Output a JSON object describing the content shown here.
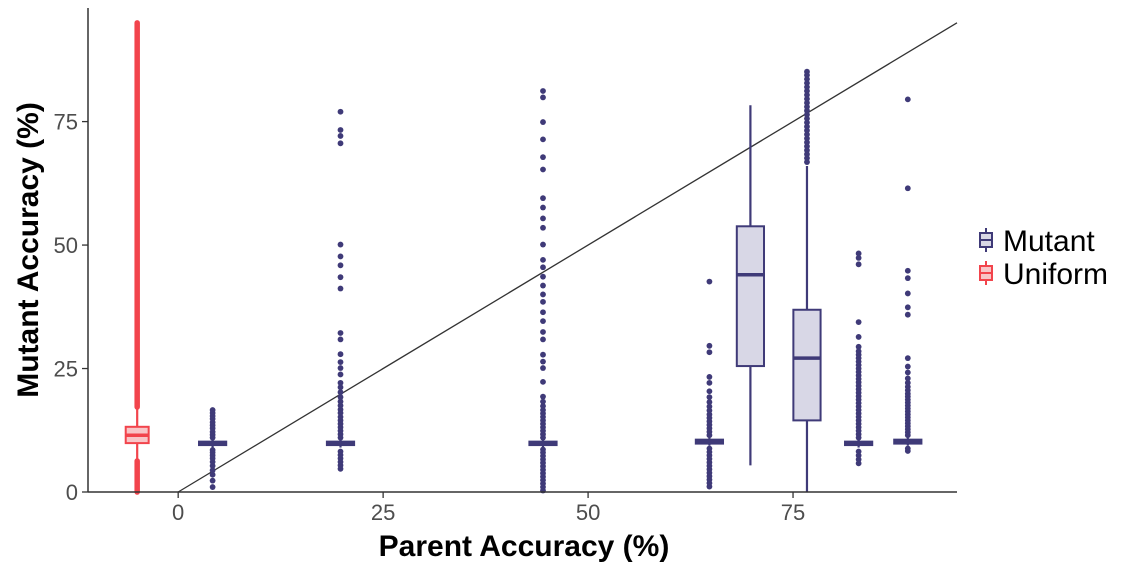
{
  "chart_data": {
    "type": "boxplot",
    "title": "",
    "xlabel": "Parent Accuracy (%)",
    "ylabel": "Mutant Accuracy (%)",
    "xlim": [
      -11,
      95
    ],
    "ylim": [
      0,
      98
    ],
    "x_ticks": [
      0,
      25,
      50,
      75
    ],
    "x_tick_labels": [
      "0",
      "25",
      "50",
      "75"
    ],
    "y_ticks": [
      0,
      25,
      50,
      75
    ],
    "y_tick_labels": [
      "0",
      "25",
      "50",
      "75"
    ],
    "grid": false,
    "legend_position": "right",
    "reference_line": {
      "type": "identity",
      "x": [
        0,
        95
      ],
      "y": [
        0,
        95
      ],
      "color": "#333333"
    },
    "series": [
      {
        "name": "Mutant",
        "color": "#3f3a78",
        "fill": "#d8d7e6",
        "boxes": [
          {
            "x": 4.2,
            "q1": 9.5,
            "median": 9.8,
            "q3": 10.2,
            "whisker_low": 9.0,
            "whisker_high": 10.6,
            "outliers": [
              1.0,
              2.3,
              3.5,
              4.4,
              5.3,
              6.1,
              6.8,
              7.4,
              8.0,
              8.5,
              11.0,
              11.6,
              12.2,
              12.9,
              13.5,
              14.1,
              14.8,
              15.4,
              16.0,
              16.6
            ]
          },
          {
            "x": 19.8,
            "q1": 9.5,
            "median": 9.8,
            "q3": 10.2,
            "whisker_low": 9.0,
            "whisker_high": 10.6,
            "outliers": [
              4.7,
              5.4,
              6.1,
              6.8,
              7.5,
              8.2,
              11.0,
              11.7,
              12.4,
              13.1,
              13.8,
              14.5,
              15.2,
              16.0,
              16.7,
              17.5,
              18.3,
              19.2,
              20.2,
              21.2,
              22.1,
              23.8,
              25.1,
              26.3,
              27.9,
              30.9,
              32.2,
              41.2,
              43.5,
              45.9,
              47.7,
              50.1,
              70.6,
              72.1,
              73.3,
              77.0
            ]
          },
          {
            "x": 44.5,
            "q1": 9.5,
            "median": 9.8,
            "q3": 10.2,
            "whisker_low": 9.0,
            "whisker_high": 10.6,
            "outliers": [
              0.3,
              1.0,
              1.7,
              2.4,
              3.1,
              3.8,
              4.5,
              5.2,
              5.9,
              6.6,
              7.3,
              8.0,
              8.6,
              11.0,
              11.7,
              12.4,
              13.1,
              13.8,
              14.5,
              15.2,
              15.9,
              16.6,
              17.4,
              18.3,
              19.3,
              22.3,
              25.1,
              26.4,
              27.8,
              30.9,
              32.4,
              34.6,
              36.4,
              38.5,
              40.0,
              41.8,
              43.6,
              45.5,
              47.0,
              50.1,
              53.5,
              55.4,
              57.6,
              59.5,
              65.3,
              67.8,
              71.4,
              74.9,
              79.9,
              81.2
            ]
          },
          {
            "x": 64.8,
            "q1": 9.8,
            "median": 10.2,
            "q3": 10.6,
            "whisker_low": 9.4,
            "whisker_high": 11.0,
            "outliers": [
              1.1,
              1.8,
              2.5,
              3.2,
              3.9,
              4.6,
              5.3,
              6.0,
              6.7,
              7.4,
              8.1,
              8.8,
              11.5,
              12.2,
              12.9,
              13.6,
              14.3,
              15.0,
              15.7,
              16.5,
              17.3,
              18.2,
              19.2,
              20.4,
              22.1,
              23.3,
              28.3,
              29.6,
              42.6
            ]
          },
          {
            "x": 69.8,
            "q1": 25.5,
            "median": 44.0,
            "q3": 53.8,
            "whisker_low": 5.4,
            "whisker_high": 78.3,
            "outliers": []
          },
          {
            "x": 76.7,
            "q1": 14.5,
            "median": 27.1,
            "q3": 36.9,
            "whisker_low": 0,
            "whisker_high": 66.0,
            "outliers": [
              66.8,
              67.6,
              68.4,
              69.2,
              70.0,
              70.8,
              71.6,
              72.4,
              73.2,
              74.0,
              74.8,
              75.6,
              76.4,
              77.2,
              78.0,
              78.8,
              79.6,
              80.4,
              81.2,
              82.0,
              82.8,
              83.6,
              84.4,
              85.1
            ]
          },
          {
            "x": 83.0,
            "q1": 9.5,
            "median": 9.8,
            "q3": 10.2,
            "whisker_low": 9.0,
            "whisker_high": 10.6,
            "outliers": [
              5.8,
              6.6,
              7.4,
              8.2,
              11.0,
              11.7,
              12.4,
              13.1,
              13.8,
              14.5,
              15.2,
              15.9,
              16.6,
              17.3,
              18.0,
              18.7,
              19.4,
              20.1,
              20.8,
              21.5,
              22.2,
              22.9,
              23.6,
              24.3,
              25.0,
              25.7,
              26.4,
              27.1,
              27.8,
              28.5,
              29.4,
              31.4,
              34.4,
              46.1,
              47.4,
              48.3
            ]
          },
          {
            "x": 89.0,
            "q1": 9.8,
            "median": 10.2,
            "q3": 10.6,
            "whisker_low": 9.4,
            "whisker_high": 11.0,
            "outliers": [
              8.3,
              8.8,
              11.5,
              12.1,
              12.7,
              13.3,
              13.9,
              14.5,
              15.1,
              15.7,
              16.3,
              16.9,
              17.5,
              18.1,
              18.7,
              19.3,
              19.9,
              20.6,
              21.3,
              22.1,
              23.0,
              24.2,
              25.4,
              27.1,
              35.9,
              37.4,
              40.2,
              43.3,
              44.8,
              61.5,
              79.5
            ]
          }
        ]
      },
      {
        "name": "Uniform",
        "color": "#f2444c",
        "fill": "#f8c5c7",
        "boxes": [
          {
            "x": -5,
            "q1": 9.9,
            "median": 11.5,
            "q3": 13.2,
            "whisker_low": 6.5,
            "whisker_high": 17.0,
            "outliers_range": [
              [
                0,
                6.3
              ],
              [
                17.2,
                95
              ]
            ]
          }
        ]
      }
    ]
  }
}
